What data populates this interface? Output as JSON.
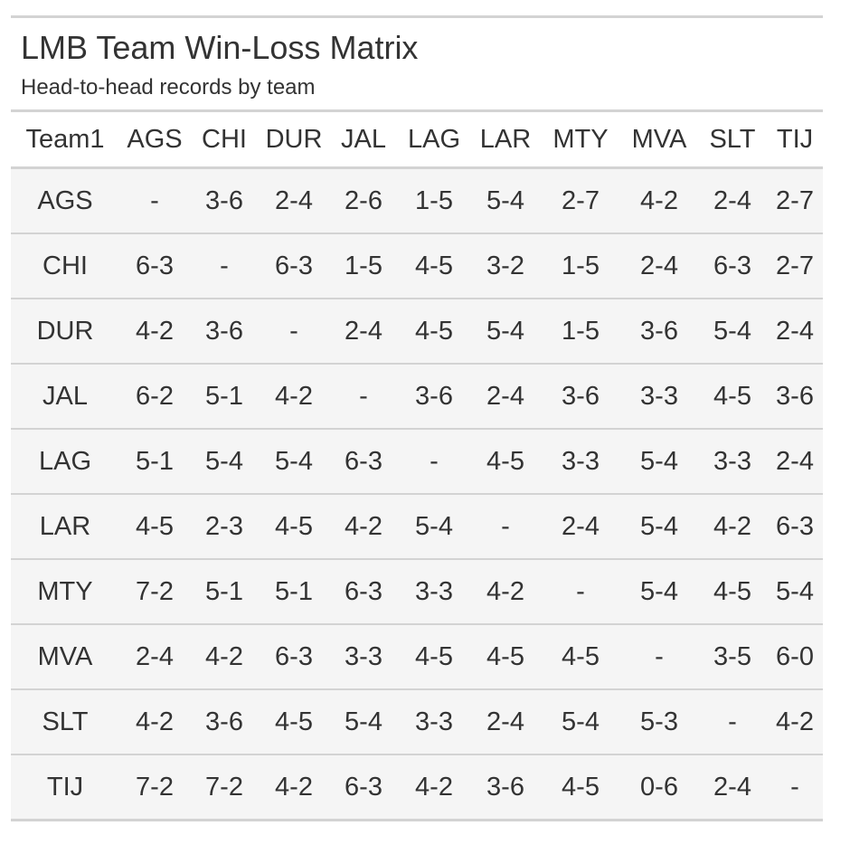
{
  "chart_data": {
    "type": "table",
    "title": "LMB Team Win-Loss Matrix",
    "subtitle": "Head-to-head records by team",
    "columns": [
      "Team1",
      "AGS",
      "CHI",
      "DUR",
      "JAL",
      "LAG",
      "LAR",
      "MTY",
      "MVA",
      "SLT",
      "TIJ"
    ],
    "rows": [
      [
        "AGS",
        "-",
        "3-6",
        "2-4",
        "2-6",
        "1-5",
        "5-4",
        "2-7",
        "4-2",
        "2-4",
        "2-7"
      ],
      [
        "CHI",
        "6-3",
        "-",
        "6-3",
        "1-5",
        "4-5",
        "3-2",
        "1-5",
        "2-4",
        "6-3",
        "2-7"
      ],
      [
        "DUR",
        "4-2",
        "3-6",
        "-",
        "2-4",
        "4-5",
        "5-4",
        "1-5",
        "3-6",
        "5-4",
        "2-4"
      ],
      [
        "JAL",
        "6-2",
        "5-1",
        "4-2",
        "-",
        "3-6",
        "2-4",
        "3-6",
        "3-3",
        "4-5",
        "3-6"
      ],
      [
        "LAG",
        "5-1",
        "5-4",
        "5-4",
        "6-3",
        "-",
        "4-5",
        "3-3",
        "5-4",
        "3-3",
        "2-4"
      ],
      [
        "LAR",
        "4-5",
        "2-3",
        "4-5",
        "4-2",
        "5-4",
        "-",
        "2-4",
        "5-4",
        "4-2",
        "6-3"
      ],
      [
        "MTY",
        "7-2",
        "5-1",
        "5-1",
        "6-3",
        "3-3",
        "4-2",
        "-",
        "5-4",
        "4-5",
        "5-4"
      ],
      [
        "MVA",
        "2-4",
        "4-2",
        "6-3",
        "3-3",
        "4-5",
        "4-5",
        "4-5",
        "-",
        "3-5",
        "6-0"
      ],
      [
        "SLT",
        "4-2",
        "3-6",
        "4-5",
        "5-4",
        "3-3",
        "2-4",
        "5-4",
        "5-3",
        "-",
        "4-2"
      ],
      [
        "TIJ",
        "7-2",
        "7-2",
        "4-2",
        "6-3",
        "4-2",
        "3-6",
        "4-5",
        "0-6",
        "2-4",
        "-"
      ]
    ]
  }
}
